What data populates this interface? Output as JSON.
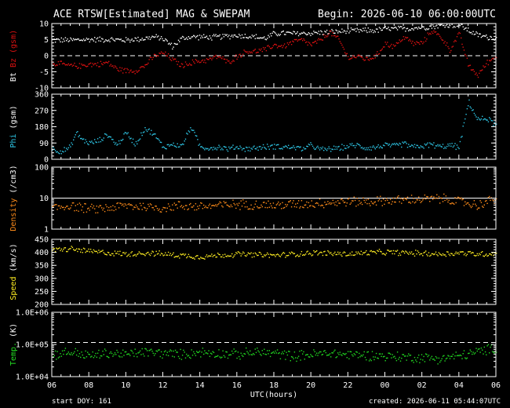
{
  "header": {
    "title": "ACE RTSW[Estimated] MAG & SWEPAM",
    "begin": "Begin: 2026-06-10 06:00:00UTC"
  },
  "footer": {
    "start_doy": "start DOY: 161",
    "created": "created: 2026-06-11 05:44:07UTC"
  },
  "colors": {
    "background": "#000000",
    "axes": "#ffffff",
    "bt": "#ffffff",
    "bz": "#dd1111",
    "phi": "#2ec8e8",
    "density": "#ff8c1a",
    "speed": "#ffee22",
    "temp": "#22dd22"
  },
  "chart_data": {
    "type": "scatter",
    "xlabel": "UTC(hours)",
    "x_ticks": [
      "06",
      "08",
      "10",
      "12",
      "14",
      "16",
      "18",
      "20",
      "22",
      "00",
      "02",
      "04",
      "06"
    ],
    "x_range_hours": [
      0,
      24
    ],
    "panels": [
      {
        "id": "mag",
        "ylabel_parts": [
          {
            "text": "Bt",
            "color": "#ffffff"
          },
          {
            "text": " ",
            "color": "#ffffff"
          },
          {
            "text": "Bz",
            "color": "#dd1111"
          },
          {
            "text": " (gsm)",
            "color": "#dd1111"
          }
        ],
        "scale": "linear",
        "ylim": [
          -10,
          10
        ],
        "y_ticks": [
          {
            "v": 10,
            "t": "10"
          },
          {
            "v": 5,
            "t": "5"
          },
          {
            "v": 0,
            "t": "0"
          },
          {
            "v": -5,
            "t": "-5"
          },
          {
            "v": -10,
            "t": "-10"
          }
        ],
        "ref_lines": [
          {
            "v": 0,
            "style": "dashed"
          }
        ],
        "series": [
          {
            "color": "#ffffff",
            "x": [
              0,
              1,
              2,
              3,
              4,
              5,
              5.5,
              6,
              6.5,
              7,
              7.5,
              8,
              8.5,
              9,
              10,
              11,
              11.5,
              12,
              12.5,
              13,
              14,
              15,
              16,
              17,
              17.5,
              18,
              19,
              20,
              21,
              22,
              22.5,
              23,
              23.5,
              24
            ],
            "y": [
              5,
              5,
              5.2,
              5.2,
              5,
              5.5,
              6,
              5.5,
              3,
              5.5,
              6,
              6,
              5.8,
              6,
              6.5,
              6,
              5.5,
              7,
              7.2,
              7,
              7.2,
              7.5,
              7.8,
              8,
              8,
              8.5,
              8.5,
              9,
              9.5,
              9.8,
              8,
              6.5,
              6,
              5.5
            ]
          },
          {
            "color": "#dd1111",
            "x": [
              0,
              0.5,
              1,
              1.5,
              2,
              2.5,
              3,
              3.5,
              4,
              4.5,
              5,
              5.5,
              6,
              6.5,
              7,
              7.5,
              8,
              8.5,
              9,
              9.5,
              10,
              10.5,
              11,
              11.5,
              12,
              12.5,
              13,
              13.5,
              14,
              14.5,
              15,
              15.5,
              16,
              16.5,
              17,
              17.5,
              18,
              18.5,
              19,
              19.5,
              20,
              20.5,
              21,
              21.5,
              22,
              22.5,
              23,
              23.5,
              24
            ],
            "y": [
              -2,
              -2.5,
              -3,
              -3,
              -2.5,
              -2.5,
              -2,
              -4,
              -4.5,
              -4.5,
              -3,
              0,
              1,
              -1,
              -3,
              -2,
              -1.5,
              -1,
              0,
              -2,
              0,
              1.5,
              1.5,
              2,
              3.5,
              3,
              4.5,
              5,
              3.5,
              5,
              7.5,
              5,
              -0.5,
              0,
              -1,
              0,
              4,
              3,
              6,
              4,
              4,
              8,
              6,
              2,
              7,
              -3,
              -6,
              -2,
              0
            ]
          }
        ]
      },
      {
        "id": "phi",
        "ylabel_parts": [
          {
            "text": "Phi",
            "color": "#2ec8e8"
          },
          {
            "text": " (gsm)",
            "color": "#ffffff"
          }
        ],
        "scale": "linear",
        "ylim": [
          0,
          360
        ],
        "y_ticks": [
          {
            "v": 360,
            "t": "360"
          },
          {
            "v": 270,
            "t": "270"
          },
          {
            "v": 180,
            "t": "180"
          },
          {
            "v": 90,
            "t": "90"
          },
          {
            "v": 0,
            "t": "0"
          }
        ],
        "series": [
          {
            "color": "#2ec8e8",
            "x": [
              0,
              0.5,
              1,
              1.3,
              1.6,
              2,
              2.5,
              3,
              3.5,
              4,
              4.5,
              5,
              5.5,
              6,
              6.5,
              7,
              7.5,
              8,
              8.5,
              9,
              9.5,
              10,
              10.5,
              11,
              11.5,
              12,
              12.5,
              13,
              13.5,
              14,
              14.5,
              15,
              15.5,
              16,
              16.5,
              17,
              17.5,
              18,
              18.5,
              19,
              19.5,
              20,
              20.5,
              21,
              21.5,
              22,
              22.5,
              23,
              23.5,
              24
            ],
            "y": [
              60,
              45,
              70,
              150,
              115,
              90,
              105,
              140,
              80,
              150,
              85,
              175,
              140,
              70,
              85,
              75,
              185,
              70,
              65,
              70,
              60,
              70,
              60,
              65,
              70,
              75,
              70,
              70,
              60,
              80,
              55,
              60,
              65,
              75,
              80,
              65,
              70,
              80,
              75,
              90,
              70,
              75,
              85,
              70,
              80,
              70,
              320,
              220,
              230,
              190
            ]
          }
        ]
      },
      {
        "id": "density",
        "ylabel_parts": [
          {
            "text": "Density",
            "color": "#ff8c1a"
          },
          {
            "text": " (/cm3)",
            "color": "#ffffff"
          }
        ],
        "scale": "log",
        "ylim": [
          1,
          100
        ],
        "y_ticks": [
          {
            "v": 100,
            "t": "100"
          },
          {
            "v": 10,
            "t": "10"
          },
          {
            "v": 1,
            "t": "1"
          }
        ],
        "ref_lines": [
          {
            "v": 10,
            "style": "solid"
          }
        ],
        "series": [
          {
            "color": "#ff8c1a",
            "x": [
              0,
              1,
              2,
              3,
              4,
              5,
              6,
              7,
              8,
              9,
              10,
              11,
              12,
              13,
              14,
              15,
              16,
              17,
              18,
              19,
              20,
              21,
              22,
              23,
              24
            ],
            "y": [
              5,
              6,
              4.5,
              5,
              6,
              5.5,
              5,
              6,
              5.5,
              6,
              6.5,
              6.5,
              6,
              6.5,
              7,
              7.5,
              8,
              8,
              8.5,
              9,
              9.5,
              10,
              8,
              6,
              10
            ]
          }
        ]
      },
      {
        "id": "speed",
        "ylabel_parts": [
          {
            "text": "Speed",
            "color": "#ffee22"
          },
          {
            "text": " (km/s)",
            "color": "#ffffff"
          }
        ],
        "scale": "linear",
        "ylim": [
          200,
          450
        ],
        "y_ticks": [
          {
            "v": 450,
            "t": "450"
          },
          {
            "v": 400,
            "t": "400"
          },
          {
            "v": 350,
            "t": "350"
          },
          {
            "v": 300,
            "t": "300"
          },
          {
            "v": 250,
            "t": "250"
          },
          {
            "v": 200,
            "t": "200"
          }
        ],
        "series": [
          {
            "color": "#ffee22",
            "x": [
              0,
              1,
              2,
              3,
              4,
              5,
              6,
              7,
              8,
              9,
              10,
              11,
              12,
              13,
              14,
              15,
              16,
              17,
              18,
              19,
              20,
              21,
              22,
              23,
              24
            ],
            "y": [
              410,
              415,
              405,
              400,
              395,
              400,
              395,
              390,
              385,
              390,
              395,
              392,
              390,
              395,
              400,
              398,
              395,
              400,
              402,
              400,
              398,
              395,
              400,
              395,
              398
            ]
          }
        ]
      },
      {
        "id": "temp",
        "ylabel_parts": [
          {
            "text": "Temp.",
            "color": "#22dd22"
          },
          {
            "text": " (K)",
            "color": "#ffffff"
          }
        ],
        "scale": "log",
        "ylim": [
          10000,
          1000000
        ],
        "y_ticks": [
          {
            "v": 1000000,
            "t": "1.0E+06"
          },
          {
            "v": 100000,
            "t": "1.0E+05"
          },
          {
            "v": 10000,
            "t": "1.0E+04"
          }
        ],
        "ref_lines": [
          {
            "v": 115000,
            "style": "dashed"
          }
        ],
        "series": [
          {
            "color": "#22dd22",
            "x": [
              0,
              1,
              2,
              3,
              4,
              5,
              6,
              7,
              8,
              9,
              10,
              11,
              12,
              13,
              14,
              15,
              16,
              17,
              18,
              19,
              20,
              21,
              22,
              23,
              24
            ],
            "y": [
              50000,
              60000,
              45000,
              55000,
              50000,
              60000,
              55000,
              50000,
              60000,
              55000,
              50000,
              60000,
              55000,
              45000,
              50000,
              55000,
              50000,
              48000,
              45000,
              42000,
              40000,
              38000,
              45000,
              60000,
              80000
            ]
          }
        ]
      }
    ]
  }
}
